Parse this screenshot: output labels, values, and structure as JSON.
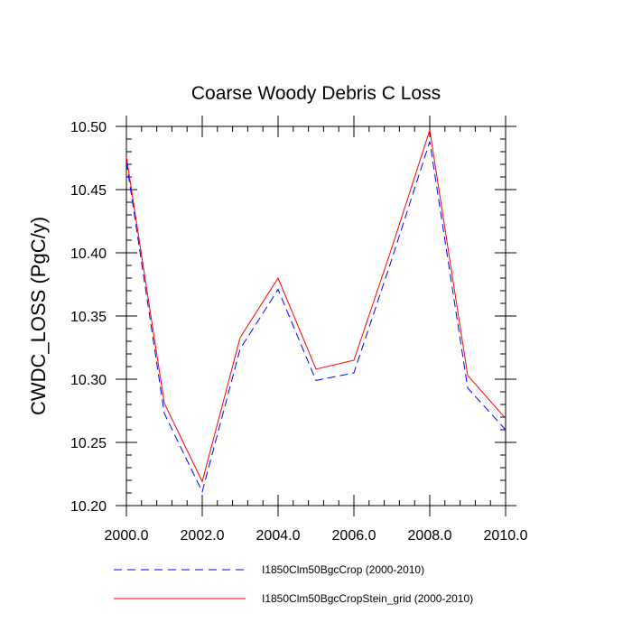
{
  "chart_data": {
    "type": "line",
    "title": "Coarse Woody Debris C Loss",
    "xlabel": "",
    "ylabel": "CWDC_LOSS  (PgC/y)",
    "xlim": [
      2000,
      2010
    ],
    "ylim": [
      10.2,
      10.5
    ],
    "x_ticks": [
      2000,
      2002,
      2004,
      2006,
      2008,
      2010
    ],
    "x_tick_labels": [
      "2000.0",
      "2002.0",
      "2004.0",
      "2006.0",
      "2008.0",
      "2010.0"
    ],
    "y_ticks": [
      10.2,
      10.25,
      10.3,
      10.35,
      10.4,
      10.45,
      10.5
    ],
    "y_tick_labels": [
      "10.20",
      "10.25",
      "10.30",
      "10.35",
      "10.40",
      "10.45",
      "10.50"
    ],
    "grid": false,
    "legend_position": "bottom",
    "x": [
      2000,
      2001,
      2002,
      2003,
      2004,
      2005,
      2006,
      2007,
      2008,
      2009,
      2010
    ],
    "series": [
      {
        "name": "I1850Clm50BgcCrop (2000-2010)",
        "color": "#0000ff",
        "dash": "dashed",
        "values": [
          10.472,
          10.273,
          10.211,
          10.324,
          10.371,
          10.299,
          10.305,
          10.395,
          10.488,
          10.293,
          10.26
        ]
      },
      {
        "name": "I1850Clm50BgcCropStein_grid (2000-2010)",
        "color": "#ff0000",
        "dash": "solid",
        "values": [
          10.476,
          10.281,
          10.219,
          10.333,
          10.38,
          10.308,
          10.315,
          10.404,
          10.497,
          10.303,
          10.269
        ]
      }
    ]
  }
}
